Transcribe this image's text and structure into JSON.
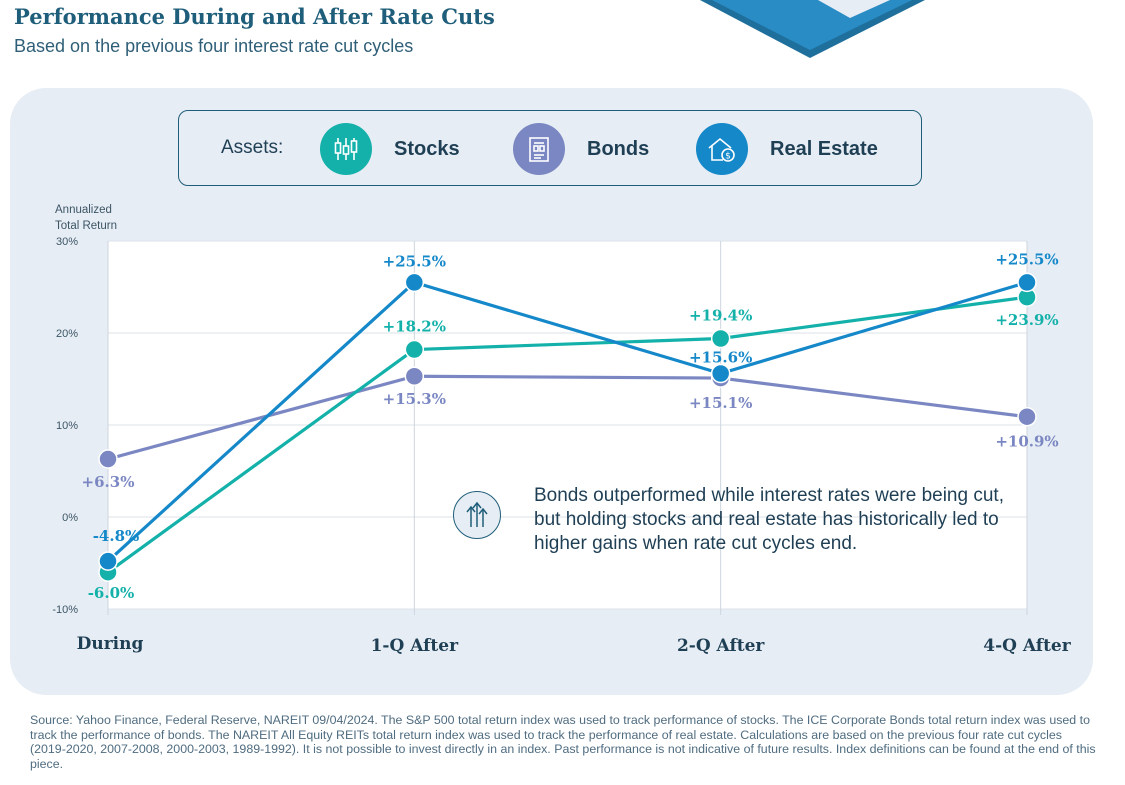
{
  "header": {
    "title": "Performance During and After Rate Cuts",
    "subtitle": "Based on the previous four interest rate cut cycles"
  },
  "legend": {
    "title": "Assets:",
    "items": [
      {
        "label": "Stocks",
        "icon": "candlestick-chart-icon",
        "color": "#14b1aa"
      },
      {
        "label": "Bonds",
        "icon": "bond-document-icon",
        "color": "#7b87c2"
      },
      {
        "label": "Real Estate",
        "icon": "house-dollar-icon",
        "color": "#1588c9"
      }
    ]
  },
  "callout": {
    "icon": "rising-arrows-icon",
    "text": "Bonds outperformed while interest rates were being cut, but holding stocks and real estate has historically led to higher gains when rate cut cycles end."
  },
  "chart_data": {
    "type": "line",
    "ylabel": "Annualized Total Return",
    "ylim": [
      -10,
      30
    ],
    "yticks": [
      {
        "value": 30,
        "label": "30%"
      },
      {
        "value": 20,
        "label": "20%"
      },
      {
        "value": 10,
        "label": "10%"
      },
      {
        "value": 0,
        "label": "0%"
      },
      {
        "value": -10,
        "label": "-10%"
      }
    ],
    "categories": [
      "During",
      "1-Q After",
      "2-Q After",
      "4-Q After"
    ],
    "series": [
      {
        "name": "Bonds",
        "color": "#7b87c2",
        "values": [
          6.3,
          15.3,
          15.1,
          10.9
        ],
        "labels": [
          "+6.3%",
          "+15.3%",
          "+15.1%",
          "+10.9%"
        ]
      },
      {
        "name": "Stocks",
        "color": "#14b1aa",
        "values": [
          -6.0,
          18.2,
          19.4,
          23.9
        ],
        "labels": [
          "-6.0%",
          "+18.2%",
          "+19.4%",
          "+23.9%"
        ]
      },
      {
        "name": "Real Estate",
        "color": "#1588c9",
        "values": [
          -4.8,
          25.5,
          15.6,
          25.5
        ],
        "labels": [
          "-4.8%",
          "+25.5%",
          "+15.6%",
          "+25.5%"
        ]
      }
    ]
  },
  "footer": {
    "source": "Source: Yahoo Finance, Federal Reserve, NAREIT 09/04/2024. The S&P 500 total return index was used to track performance of stocks. The ICE Corporate Bonds total return index was used to track the performance of bonds. The NAREIT All Equity REITs total return index was used to track the performance of real estate. Calculations are based on the previous four rate cut cycles (2019-2020, 2007-2008, 2000-2003, 1989-1992). It is not possible to invest directly in an index. Past performance is not indicative of future results. Index definitions can be found at the end of this piece."
  }
}
